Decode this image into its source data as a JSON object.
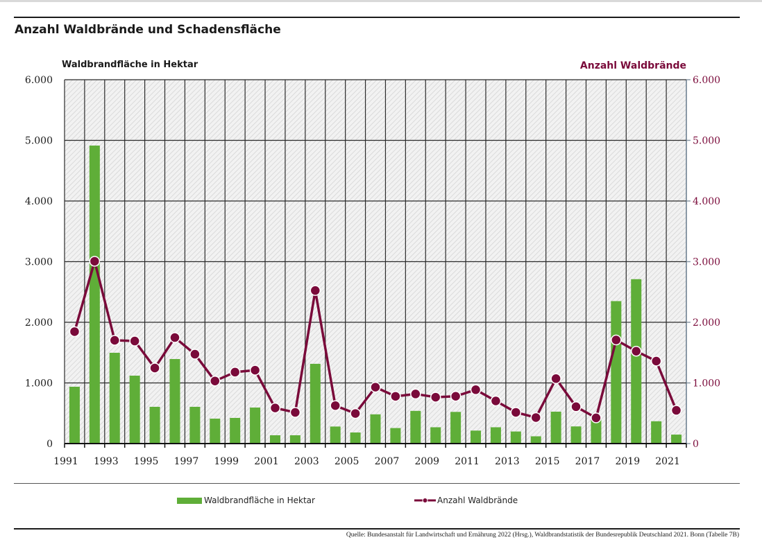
{
  "chart_data": {
    "type": "bar+line",
    "title": "Anzahl Waldbrände und Schadensfläche",
    "ylabel_left": "Waldbrandfläche in Hektar",
    "ylabel_right": "Anzahl Waldbrände",
    "ylim_left": [
      0,
      6000
    ],
    "ylim_right": [
      0,
      6000
    ],
    "yticks": [
      "0",
      "1.000",
      "2.000",
      "3.000",
      "4.000",
      "5.000",
      "6.000"
    ],
    "ytick_values": [
      0,
      1000,
      2000,
      3000,
      4000,
      5000,
      6000
    ],
    "x": [
      1991,
      1992,
      1993,
      1994,
      1995,
      1996,
      1997,
      1998,
      1999,
      2000,
      2001,
      2002,
      2003,
      2004,
      2005,
      2006,
      2007,
      2008,
      2009,
      2010,
      2011,
      2012,
      2013,
      2014,
      2015,
      2016,
      2017,
      2018,
      2019,
      2020,
      2021
    ],
    "xtick_labels": [
      "1991",
      "1993",
      "1995",
      "1997",
      "1999",
      "2001",
      "2003",
      "2005",
      "2007",
      "2009",
      "2011",
      "2013",
      "2015",
      "2017",
      "2019",
      "2021"
    ],
    "grid": true,
    "legend_position": "bottom",
    "series": [
      {
        "name": "Waldbrandfläche in Hektar",
        "type": "bar",
        "axis": "left",
        "color": "#5fae38",
        "values": [
          937,
          4914,
          1497,
          1120,
          606,
          1394,
          606,
          411,
          423,
          594,
          137,
          137,
          1315,
          281,
          183,
          482,
          256,
          539,
          269,
          522,
          214,
          269,
          199,
          120,
          526,
          283,
          395,
          2349,
          2711,
          368,
          148
        ]
      },
      {
        "name": "Anzahl Waldbrände",
        "type": "line",
        "axis": "right",
        "color": "#7a0a3a",
        "values": [
          1846,
          3006,
          1703,
          1691,
          1246,
          1748,
          1474,
          1032,
          1178,
          1210,
          587,
          514,
          2524,
          626,
          496,
          930,
          779,
          818,
          765,
          780,
          888,
          703,
          515,
          429,
          1071,
          608,
          424,
          1708,
          1523,
          1360,
          548
        ]
      }
    ]
  },
  "legend": {
    "bar_label": "Waldbrandfläche in Hektar",
    "line_label": "Anzahl Waldbrände"
  },
  "source": "Quelle: Bundesanstalt für Landwirtschaft und Ernährung 2022 (Hrsg.), Waldbrandstatistik der Bundesrepublik Deutschland 2021. Bonn (Tabelle 7B)"
}
